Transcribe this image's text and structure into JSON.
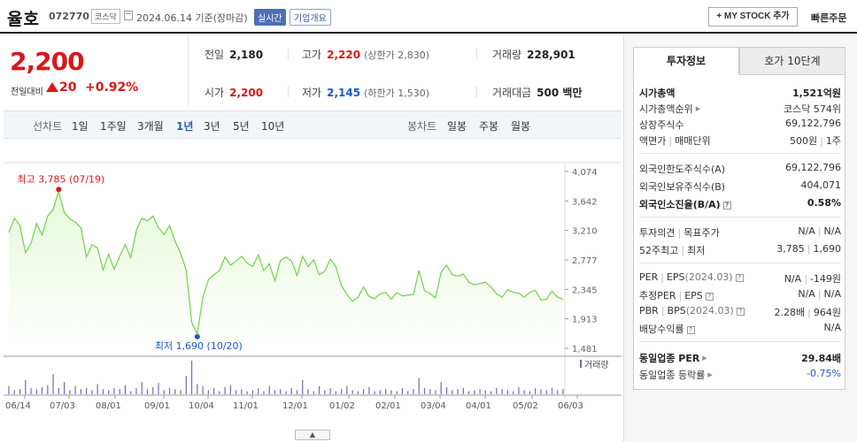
{
  "header": {
    "name": "율호",
    "code": "072770",
    "market": "코스닥",
    "date": "2024.06.14 기준(장마감)",
    "realtime": "실시간",
    "overview": "기업개요",
    "mystock": "+ MY STOCK 추가",
    "fast_order": "빠른주문"
  },
  "price": {
    "current": "2,200",
    "change_label": "전일대비",
    "change": "20",
    "percent": "+0.92%"
  },
  "stats": {
    "prev_label": "전일",
    "prev": "2,180",
    "high_label": "고가",
    "high": "2,220",
    "upper_limit": "(상한가 2,830)",
    "volume_label": "거래량",
    "volume": "228,901",
    "open_label": "시가",
    "open": "2,200",
    "low_label": "저가",
    "low": "2,145",
    "lower_limit": "(하한가 1,530)",
    "amount_label": "거래대금",
    "amount": "500 백만"
  },
  "tabs": {
    "line_label": "선차트",
    "line": [
      "1일",
      "1주일",
      "3개월",
      "1년",
      "3년",
      "5년",
      "10년"
    ],
    "selected": "1년",
    "candle_label": "봉차트",
    "candle": [
      "일봉",
      "주봉",
      "월봉"
    ]
  },
  "chart_data": {
    "type": "area",
    "yticks": [
      "4,074",
      "3,642",
      "3,210",
      "2,777",
      "2,345",
      "1,913",
      "1,481"
    ],
    "ylim": [
      1481,
      4074
    ],
    "xticks": [
      "06/14",
      "07/03",
      "08/01",
      "09/01",
      "10/04",
      "11/01",
      "12/01",
      "01/02",
      "02/01",
      "03/04",
      "04/01",
      "05/02",
      "06/03"
    ],
    "high_label": "최고 3,785 (07/19)",
    "low_label": "최저 1,690 (10/20)",
    "volume_label": "거래량",
    "series": [
      {
        "values": [
          3180,
          3390,
          3280,
          2880,
          3020,
          3310,
          3140,
          3420,
          3520,
          3785,
          3470,
          3380,
          3330,
          3250,
          2820,
          3000,
          2950,
          2630,
          2860,
          2640,
          2830,
          3000,
          2810,
          3210,
          3390,
          3350,
          3420,
          3250,
          3150,
          3280,
          3050,
          2870,
          2630,
          1860,
          1690,
          2230,
          2490,
          2560,
          2620,
          2820,
          2700,
          2760,
          2830,
          2730,
          2680,
          2850,
          2620,
          2720,
          2470,
          2770,
          2820,
          2760,
          2550,
          2830,
          2680,
          2780,
          2560,
          2610,
          2790,
          2680,
          2400,
          2270,
          2170,
          2230,
          2380,
          2240,
          2210,
          2280,
          2300,
          2200,
          2300,
          2250,
          2260,
          2270,
          2620,
          2330,
          2280,
          2220,
          2600,
          2700,
          2560,
          2540,
          2570,
          2450,
          2410,
          2430,
          2450,
          2380,
          2280,
          2230,
          2340,
          2300,
          2290,
          2230,
          2300,
          2330,
          2190,
          2200,
          2320,
          2230,
          2200
        ]
      }
    ],
    "volume": [
      8,
      4,
      5,
      14,
      6,
      5,
      7,
      9,
      20,
      6,
      12,
      4,
      8,
      5,
      6,
      4,
      10,
      5,
      4,
      6,
      5,
      9,
      3,
      6,
      12,
      5,
      7,
      11,
      4,
      6,
      5,
      4,
      18,
      33,
      10,
      8,
      4,
      6,
      3,
      7,
      9,
      4,
      5,
      3,
      4,
      6,
      3,
      8,
      4,
      5,
      3,
      6,
      4,
      14,
      5,
      3,
      8,
      4,
      6,
      3,
      5,
      8,
      4,
      3,
      5,
      7,
      3,
      4,
      5,
      4,
      3,
      6,
      3,
      5,
      16,
      6,
      5,
      4,
      12,
      7,
      4,
      5,
      6,
      3,
      4,
      5,
      4,
      3,
      6,
      5,
      4,
      3,
      7,
      4,
      3,
      6,
      5,
      4,
      6,
      4,
      5
    ]
  },
  "right_panel": {
    "tab_active": "투자정보",
    "tab_other": "호가 10단계",
    "market_cap_label": "시가총액",
    "market_cap": "1,521억원",
    "cap_rank_label": "시가총액순위",
    "cap_rank": "코스닥 574위",
    "shares_label": "상장주식수",
    "shares": "69,122,796",
    "face_label": "액면가",
    "unit_label": "매매단위",
    "face": "500원",
    "unit": "1주",
    "foreign_limit_label": "외국인한도주식수(A)",
    "foreign_limit": "69,122,796",
    "foreign_hold_label": "외국인보유주식수(B)",
    "foreign_hold": "404,071",
    "foreign_ratio_label": "외국인소진율(B/A)",
    "foreign_ratio": "0.58%",
    "opinion_label": "투자의견",
    "target_label": "목표주가",
    "opinion": "N/A",
    "target": "N/A",
    "w52_high_label": "52주최고",
    "w52_low_label": "최저",
    "w52_high": "3,785",
    "w52_low": "1,690",
    "per_label": "PER",
    "eps_label": "EPS",
    "eps_year": "(2024.03)",
    "per": "N/A",
    "eps": "-149원",
    "eper_label": "추정PER",
    "eeps_label": "EPS",
    "eper": "N/A",
    "eeps": "N/A",
    "pbr_label": "PBR",
    "bps_label": "BPS",
    "bps_year": "(2024.03)",
    "pbr": "2.28배",
    "bps": "964원",
    "div_label": "배당수익률",
    "div": "N/A",
    "ind_per_label": "동일업종 PER",
    "ind_per": "29.84배",
    "ind_rate_label": "동일업종 등락률",
    "ind_rate": "-0.75%"
  },
  "colors": {
    "up": "#d9181b",
    "down": "#1b58c7",
    "line": "#6fd24a",
    "fill": "#e6f8d8",
    "volume": "#6b6fa8"
  }
}
